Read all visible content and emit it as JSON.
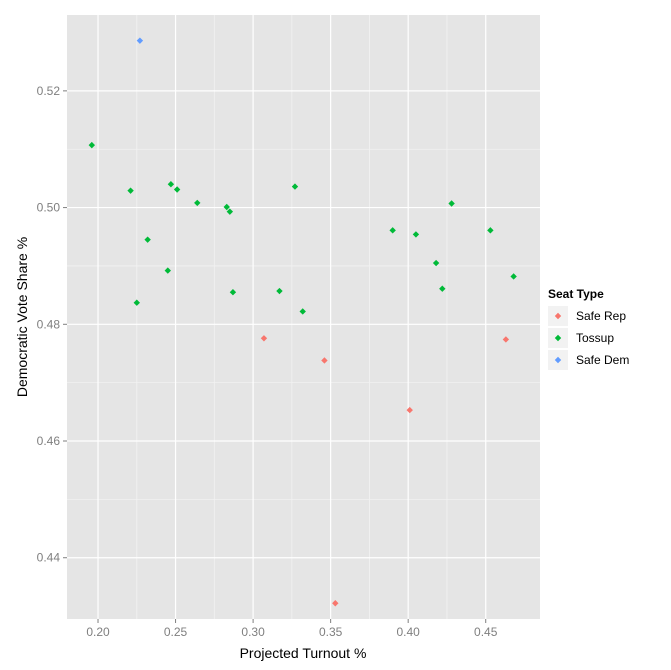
{
  "chart_data": {
    "type": "scatter",
    "xlabel": "Projected Turnout %",
    "ylabel": "Democratic Vote Share %",
    "xlim": [
      0.18,
      0.485
    ],
    "ylim": [
      0.4295,
      0.533
    ],
    "x_ticks": [
      0.2,
      0.25,
      0.3,
      0.35,
      0.4,
      0.45
    ],
    "x_tick_labels": [
      "0.20",
      "0.25",
      "0.30",
      "0.35",
      "0.40",
      "0.45"
    ],
    "y_ticks": [
      0.44,
      0.46,
      0.48,
      0.5,
      0.52
    ],
    "y_tick_labels": [
      "0.44",
      "0.46",
      "0.48",
      "0.50",
      "0.52"
    ],
    "grid": true,
    "legend": {
      "title": "Seat Type",
      "placement": "right"
    },
    "series": [
      {
        "name": "Safe Rep",
        "color": "#F8766D",
        "points": [
          {
            "x": 0.307,
            "y": 0.4776
          },
          {
            "x": 0.346,
            "y": 0.4738
          },
          {
            "x": 0.401,
            "y": 0.4653
          },
          {
            "x": 0.463,
            "y": 0.4774
          },
          {
            "x": 0.353,
            "y": 0.4322
          }
        ]
      },
      {
        "name": "Tossup",
        "color": "#00BA38",
        "points": [
          {
            "x": 0.196,
            "y": 0.5107
          },
          {
            "x": 0.221,
            "y": 0.5029
          },
          {
            "x": 0.225,
            "y": 0.4837
          },
          {
            "x": 0.232,
            "y": 0.4945
          },
          {
            "x": 0.245,
            "y": 0.4892
          },
          {
            "x": 0.247,
            "y": 0.504
          },
          {
            "x": 0.251,
            "y": 0.5031
          },
          {
            "x": 0.264,
            "y": 0.5008
          },
          {
            "x": 0.283,
            "y": 0.5001
          },
          {
            "x": 0.285,
            "y": 0.4993
          },
          {
            "x": 0.287,
            "y": 0.4855
          },
          {
            "x": 0.317,
            "y": 0.4857
          },
          {
            "x": 0.327,
            "y": 0.5036
          },
          {
            "x": 0.332,
            "y": 0.4822
          },
          {
            "x": 0.39,
            "y": 0.4961
          },
          {
            "x": 0.405,
            "y": 0.4954
          },
          {
            "x": 0.418,
            "y": 0.4905
          },
          {
            "x": 0.422,
            "y": 0.4861
          },
          {
            "x": 0.428,
            "y": 0.5007
          },
          {
            "x": 0.453,
            "y": 0.4961
          },
          {
            "x": 0.468,
            "y": 0.4882
          }
        ]
      },
      {
        "name": "Safe Dem",
        "color": "#619CFF",
        "points": [
          {
            "x": 0.227,
            "y": 0.5286
          }
        ]
      }
    ]
  }
}
